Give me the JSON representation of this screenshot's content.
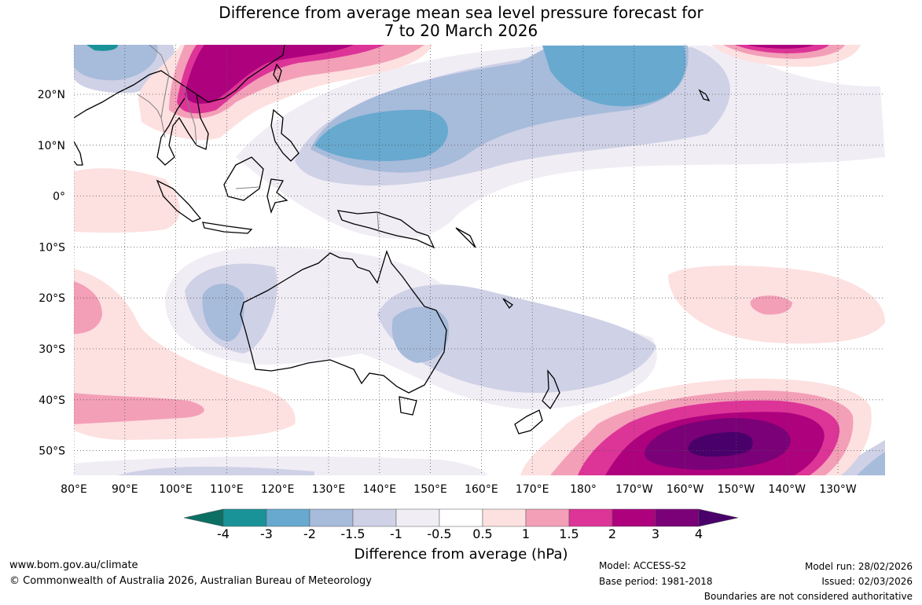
{
  "title": {
    "line1": "Difference from average mean sea level pressure forecast for",
    "line2": "7 to 20 March 2026"
  },
  "map": {
    "lat_labels": [
      "20°N",
      "10°N",
      "0°",
      "10°S",
      "20°S",
      "30°S",
      "40°S",
      "50°S"
    ],
    "lon_labels": [
      "80°E",
      "90°E",
      "100°E",
      "110°E",
      "120°E",
      "130°E",
      "140°E",
      "150°E",
      "160°E",
      "170°E",
      "180°",
      "170°W",
      "160°W",
      "150°W",
      "140°W",
      "130°W"
    ]
  },
  "colorbar": {
    "title": "Difference from average (hPa)",
    "tick_labels": [
      "-4",
      "-3",
      "-2",
      "-1.5",
      "-1",
      "-0.5",
      "0.5",
      "1",
      "1.5",
      "2",
      "3",
      "4"
    ],
    "colors": [
      "#0b6f64",
      "#1a9398",
      "#67a9cf",
      "#a7bbdb",
      "#cfd1e6",
      "#f1edf5",
      "#ffffff",
      "#fde0e0",
      "#f39fb8",
      "#dd3497",
      "#ae017e",
      "#7a0177",
      "#49006a"
    ]
  },
  "footer": {
    "url": "www.bom.gov.au/climate",
    "copyright": "© Commonwealth of Australia 2026, Australian Bureau of Meteorology",
    "model": "Model: ACCESS-S2",
    "base_period": "Base period: 1981-2018",
    "model_run": "Model run: 28/02/2026",
    "issued": "Issued: 02/03/2026",
    "disclaimer": "Boundaries are not considered authoritative"
  }
}
